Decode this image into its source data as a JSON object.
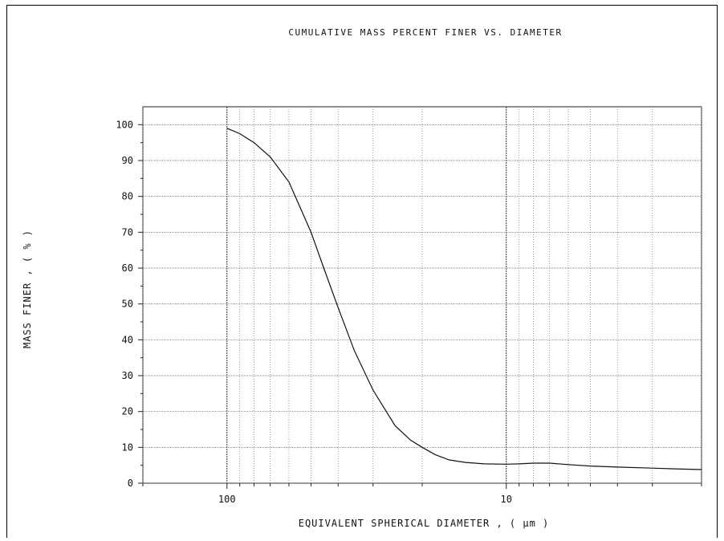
{
  "chart_data": {
    "type": "line",
    "title": "CUMULATIVE MASS PERCENT  FINER  VS. DIAMETER",
    "xlabel": "EQUIVALENT SPHERICAL DIAMETER ,  ( µm )",
    "ylabel": "MASS  FINER  , ( % )",
    "x_scale": "log",
    "x_reversed": true,
    "xlim": [
      200,
      2
    ],
    "ylim": [
      0,
      105
    ],
    "x_ticks": [
      100,
      10
    ],
    "y_ticks": [
      0,
      10,
      20,
      30,
      40,
      50,
      60,
      70,
      80,
      90,
      100
    ],
    "grid": true,
    "series": [
      {
        "x": [
          100,
          90,
          80,
          70,
          60,
          50,
          45,
          40,
          35,
          30,
          25,
          22,
          20,
          18,
          16,
          14,
          12,
          10,
          9,
          8,
          7,
          6,
          5,
          4,
          3,
          2.5,
          2
        ],
        "y": [
          99,
          97.5,
          95,
          91,
          84,
          70,
          60,
          49,
          37,
          26,
          16,
          12,
          10,
          8,
          6.5,
          5.8,
          5.4,
          5.3,
          5.4,
          5.6,
          5.6,
          5.2,
          4.8,
          4.5,
          4.2,
          4.0,
          3.8
        ]
      }
    ]
  }
}
